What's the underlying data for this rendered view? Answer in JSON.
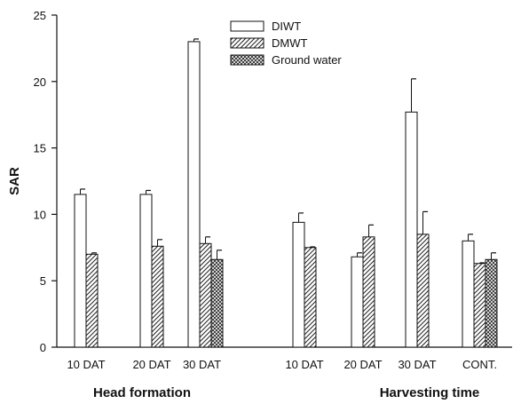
{
  "chart_data": {
    "type": "bar",
    "ylabel": "SAR",
    "ylim": [
      0,
      25
    ],
    "yticks": [
      0,
      5,
      10,
      15,
      20,
      25
    ],
    "legend_position": "top-center",
    "series": [
      {
        "name": "DIWT",
        "pattern": "open"
      },
      {
        "name": "DMWT",
        "pattern": "diagonal-hatch"
      },
      {
        "name": "Ground water",
        "pattern": "cross-hatch"
      }
    ],
    "groups": [
      {
        "label": "Head formation",
        "categories": [
          {
            "label": "10 DAT",
            "bars": [
              {
                "series": "DIWT",
                "value": 11.5,
                "error": 0.4
              },
              {
                "series": "DMWT",
                "value": 7.0,
                "error": 0.1
              }
            ]
          },
          {
            "label": "20 DAT",
            "bars": [
              {
                "series": "DIWT",
                "value": 11.5,
                "error": 0.3
              },
              {
                "series": "DMWT",
                "value": 7.6,
                "error": 0.5
              }
            ]
          },
          {
            "label": "30 DAT",
            "bars": [
              {
                "series": "DIWT",
                "value": 23.0,
                "error": 0.2
              },
              {
                "series": "DMWT",
                "value": 7.8,
                "error": 0.5
              },
              {
                "series": "Ground water",
                "value": 6.6,
                "error": 0.7
              }
            ]
          }
        ]
      },
      {
        "label": "Harvesting time",
        "categories": [
          {
            "label": "10 DAT",
            "bars": [
              {
                "series": "DIWT",
                "value": 9.4,
                "error": 0.7
              },
              {
                "series": "DMWT",
                "value": 7.5,
                "error": 0.05
              }
            ]
          },
          {
            "label": "20 DAT",
            "bars": [
              {
                "series": "DIWT",
                "value": 6.8,
                "error": 0.3
              },
              {
                "series": "DMWT",
                "value": 8.3,
                "error": 0.9
              }
            ]
          },
          {
            "label": "30 DAT",
            "bars": [
              {
                "series": "DIWT",
                "value": 17.7,
                "error": 2.5
              },
              {
                "series": "DMWT",
                "value": 8.5,
                "error": 1.7
              }
            ]
          },
          {
            "label": "CONT.",
            "bars": [
              {
                "series": "DIWT",
                "value": 8.0,
                "error": 0.5
              },
              {
                "series": "DMWT",
                "value": 6.3,
                "error": 0.05
              },
              {
                "series": "Ground water",
                "value": 6.6,
                "error": 0.5
              }
            ]
          }
        ]
      }
    ]
  }
}
